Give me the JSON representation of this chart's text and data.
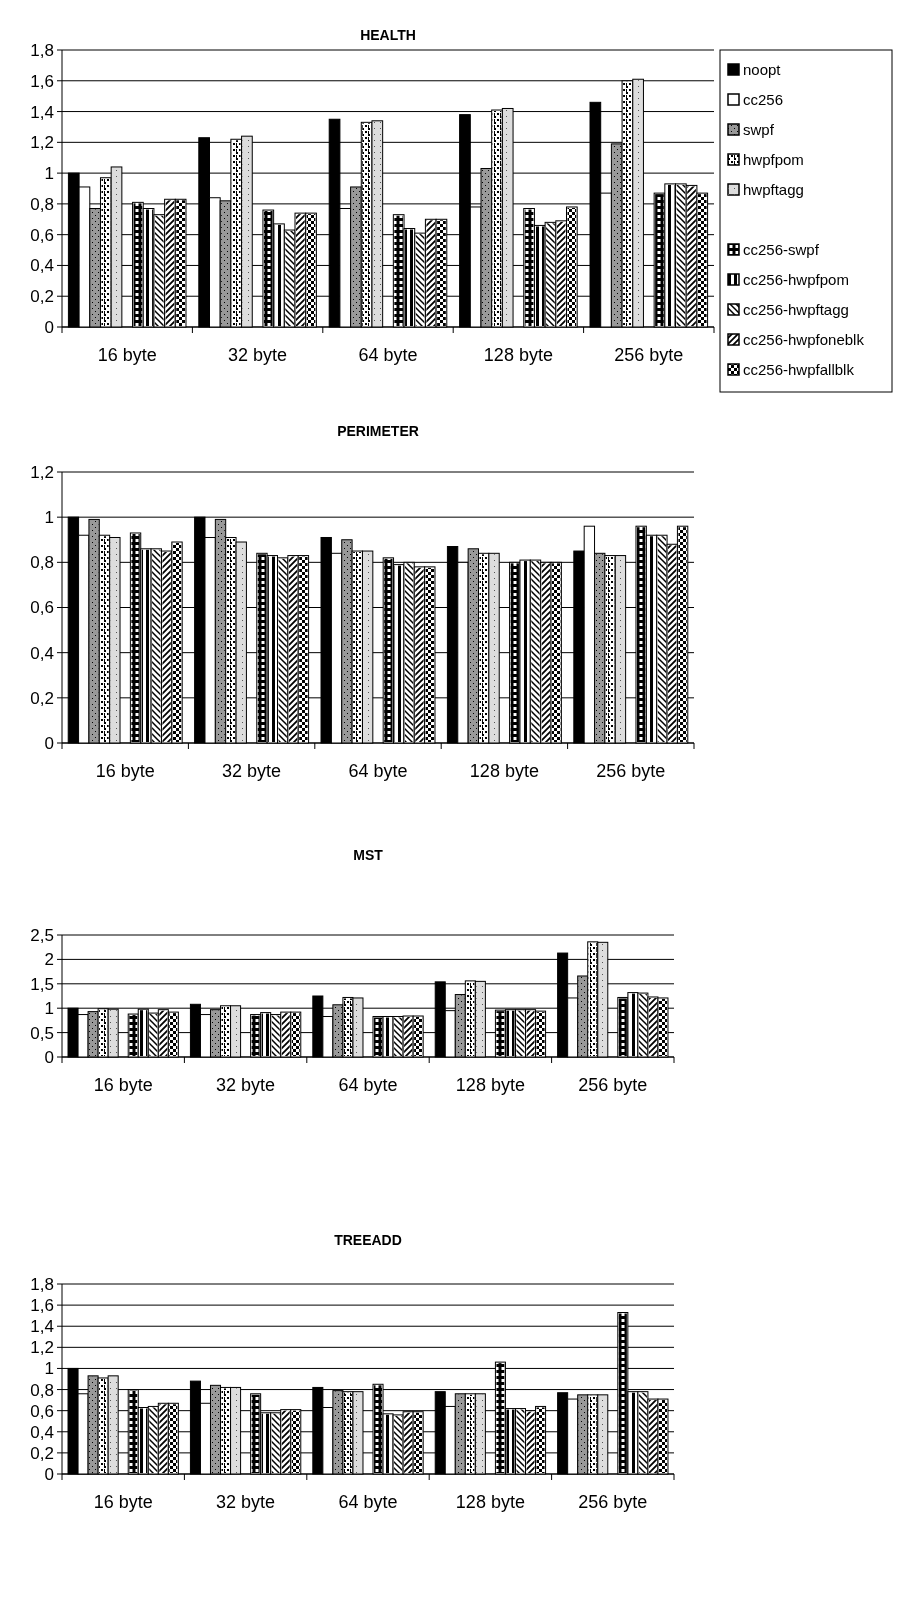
{
  "chart_data": [
    {
      "type": "bar",
      "title": "HEALTH",
      "categories": [
        "16 byte",
        "32 byte",
        "64 byte",
        "128 byte",
        "256 byte"
      ],
      "ylim": [
        0,
        1.8
      ],
      "yticks": [
        0,
        {
          "value": 0.2,
          "label": "0,2"
        },
        {
          "value": 0.4,
          "label": "0,4"
        },
        {
          "value": 0.6,
          "label": "0,6"
        },
        {
          "value": 0.8,
          "label": "0,8"
        },
        1,
        {
          "value": 1.2,
          "label": "1,2"
        },
        {
          "value": 1.4,
          "label": "1,4"
        },
        {
          "value": 1.6,
          "label": "1,6"
        },
        {
          "value": 1.8,
          "label": "1,8"
        }
      ],
      "grid": "y",
      "legend": "right",
      "series": [
        {
          "name": "noopt",
          "color": "#000000",
          "values": [
            1.0,
            1.23,
            1.35,
            1.38,
            1.46
          ]
        },
        {
          "name": "cc256",
          "color": "#ffffff",
          "values": [
            0.91,
            0.84,
            0.77,
            0.78,
            0.87
          ]
        },
        {
          "name": "swpf",
          "color": "#999999",
          "values": [
            0.77,
            0.82,
            0.91,
            1.03,
            1.19
          ]
        },
        {
          "name": "hwpfpom",
          "color": "#ffffff",
          "values": [
            0.97,
            1.22,
            1.33,
            1.41,
            1.6
          ]
        },
        {
          "name": "hwpftagg",
          "color": "#dddddd",
          "values": [
            1.04,
            1.24,
            1.34,
            1.42,
            1.61
          ]
        },
        {
          "values": [
            null,
            null,
            null,
            null,
            null
          ]
        },
        {
          "name": "cc256-swpf",
          "color": "#ffffff",
          "values": [
            0.81,
            0.76,
            0.73,
            0.77,
            0.87
          ]
        },
        {
          "name": "cc256-hwpfpom",
          "color": "#ffffff",
          "values": [
            0.77,
            0.67,
            0.64,
            0.66,
            0.93
          ]
        },
        {
          "name": "cc256-hwpftagg",
          "color": "#ffffff",
          "values": [
            0.73,
            0.63,
            0.61,
            0.68,
            0.93
          ]
        },
        {
          "name": "cc256-hwpfoneblk",
          "color": "#ffffff",
          "values": [
            0.83,
            0.74,
            0.7,
            0.69,
            0.92
          ]
        },
        {
          "name": "cc256-hwpfallblk",
          "color": "#ffffff",
          "values": [
            0.83,
            0.74,
            0.7,
            0.78,
            0.87
          ]
        }
      ]
    },
    {
      "type": "bar",
      "title": "PERIMETER",
      "categories": [
        "16 byte",
        "32 byte",
        "64 byte",
        "128 byte",
        "256 byte"
      ],
      "ylim": [
        0,
        1.2
      ],
      "yticks": [
        0,
        {
          "value": 0.2,
          "label": "0,2"
        },
        {
          "value": 0.4,
          "label": "0,4"
        },
        {
          "value": 0.6,
          "label": "0,6"
        },
        {
          "value": 0.8,
          "label": "0,8"
        },
        1,
        {
          "value": 1.2,
          "label": "1,2"
        }
      ],
      "grid": "y",
      "series": [
        {
          "color": "#000000",
          "values": [
            1.0,
            1.0,
            0.91,
            0.87,
            0.85
          ]
        },
        {
          "color": "#ffffff",
          "values": [
            0.92,
            0.91,
            0.84,
            0.8,
            0.96
          ]
        },
        {
          "color": "#999999",
          "values": [
            0.99,
            0.99,
            0.9,
            0.86,
            0.84
          ]
        },
        {
          "color": "#ffffff",
          "values": [
            0.92,
            0.91,
            0.85,
            0.84,
            0.83
          ]
        },
        {
          "color": "#dddddd",
          "values": [
            0.91,
            0.89,
            0.85,
            0.84,
            0.83
          ]
        },
        {
          "values": [
            null,
            null,
            null,
            null,
            null
          ]
        },
        {
          "color": "#ffffff",
          "values": [
            0.93,
            0.84,
            0.82,
            0.8,
            0.96
          ]
        },
        {
          "color": "#ffffff",
          "values": [
            0.86,
            0.83,
            0.79,
            0.81,
            0.92
          ]
        },
        {
          "color": "#ffffff",
          "values": [
            0.86,
            0.82,
            0.8,
            0.81,
            0.92
          ]
        },
        {
          "color": "#ffffff",
          "values": [
            0.85,
            0.83,
            0.78,
            0.8,
            0.88
          ]
        },
        {
          "color": "#ffffff",
          "values": [
            0.89,
            0.83,
            0.78,
            0.8,
            0.96
          ]
        }
      ]
    },
    {
      "type": "bar",
      "title": "MST",
      "categories": [
        "16 byte",
        "32 byte",
        "64 byte",
        "128 byte",
        "256 byte"
      ],
      "ylim": [
        0,
        2.5
      ],
      "yticks": [
        0,
        {
          "value": 0.5,
          "label": "0,5"
        },
        1,
        {
          "value": 1.5,
          "label": "1,5"
        },
        2,
        {
          "value": 2.5,
          "label": "2,5"
        }
      ],
      "grid": "y",
      "series": [
        {
          "color": "#000000",
          "values": [
            1.0,
            1.08,
            1.25,
            1.54,
            2.13
          ]
        },
        {
          "color": "#ffffff",
          "values": [
            0.87,
            0.87,
            0.83,
            0.95,
            1.21
          ]
        },
        {
          "color": "#999999",
          "values": [
            0.93,
            0.97,
            1.07,
            1.28,
            1.66
          ]
        },
        {
          "color": "#ffffff",
          "values": [
            0.99,
            1.05,
            1.22,
            1.56,
            2.36
          ]
        },
        {
          "color": "#dddddd",
          "values": [
            0.98,
            1.05,
            1.21,
            1.55,
            2.35
          ]
        },
        {
          "values": [
            null,
            null,
            null,
            null,
            null
          ]
        },
        {
          "color": "#ffffff",
          "values": [
            0.88,
            0.87,
            0.83,
            0.96,
            1.22
          ]
        },
        {
          "color": "#ffffff",
          "values": [
            0.98,
            0.91,
            0.83,
            0.97,
            1.32
          ]
        },
        {
          "color": "#ffffff",
          "values": [
            0.9,
            0.87,
            0.83,
            0.97,
            1.31
          ]
        },
        {
          "color": "#ffffff",
          "values": [
            0.97,
            0.92,
            0.84,
            0.97,
            1.23
          ]
        },
        {
          "color": "#ffffff",
          "values": [
            0.92,
            0.92,
            0.84,
            0.94,
            1.21
          ]
        }
      ]
    },
    {
      "type": "bar",
      "title": "TREEADD",
      "categories": [
        "16 byte",
        "32 byte",
        "64 byte",
        "128 byte",
        "256 byte"
      ],
      "ylim": [
        0,
        1.8
      ],
      "yticks": [
        0,
        {
          "value": 0.2,
          "label": "0,2"
        },
        {
          "value": 0.4,
          "label": "0,4"
        },
        {
          "value": 0.6,
          "label": "0,6"
        },
        {
          "value": 0.8,
          "label": "0,8"
        },
        1,
        {
          "value": 1.2,
          "label": "1,2"
        },
        {
          "value": 1.4,
          "label": "1,4"
        },
        {
          "value": 1.6,
          "label": "1,6"
        },
        {
          "value": 1.8,
          "label": "1,8"
        }
      ],
      "grid": "y",
      "series": [
        {
          "color": "#000000",
          "values": [
            1.0,
            0.88,
            0.82,
            0.78,
            0.77
          ]
        },
        {
          "color": "#ffffff",
          "values": [
            0.76,
            0.67,
            0.63,
            0.64,
            0.71
          ]
        },
        {
          "color": "#999999",
          "values": [
            0.93,
            0.84,
            0.79,
            0.76,
            0.75
          ]
        },
        {
          "color": "#ffffff",
          "values": [
            0.91,
            0.82,
            0.78,
            0.76,
            0.75
          ]
        },
        {
          "color": "#dddddd",
          "values": [
            0.93,
            0.82,
            0.78,
            0.76,
            0.75
          ]
        },
        {
          "values": [
            null,
            null,
            null,
            null,
            null
          ]
        },
        {
          "color": "#ffffff",
          "values": [
            0.8,
            0.76,
            0.85,
            1.06,
            1.53
          ]
        },
        {
          "color": "#ffffff",
          "values": [
            0.63,
            0.58,
            0.57,
            0.62,
            0.78
          ]
        },
        {
          "color": "#ffffff",
          "values": [
            0.64,
            0.58,
            0.56,
            0.62,
            0.78
          ]
        },
        {
          "color": "#ffffff",
          "values": [
            0.67,
            0.61,
            0.59,
            0.6,
            0.71
          ]
        },
        {
          "color": "#ffffff",
          "values": [
            0.67,
            0.61,
            0.59,
            0.64,
            0.71
          ]
        }
      ]
    }
  ]
}
